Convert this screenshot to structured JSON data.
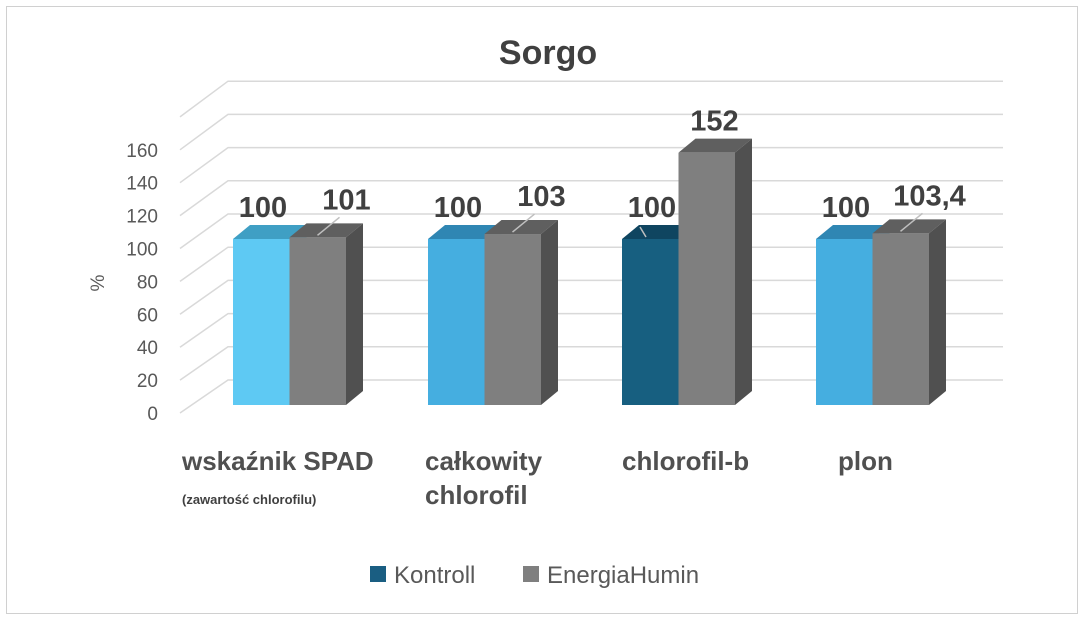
{
  "chart_data": {
    "type": "bar",
    "title": "Sorgo",
    "ylabel": "%",
    "xlabel": "",
    "ylim": [
      0,
      180
    ],
    "yticks": [
      0,
      20,
      40,
      60,
      80,
      100,
      120,
      140,
      160
    ],
    "grid": true,
    "legend_position": "bottom",
    "categories": [
      "wskaźnik SPAD",
      "całkowity chlorofil",
      "chlorofil-b",
      "plon"
    ],
    "category_lines": [
      [
        "wskaźnik SPAD"
      ],
      [
        "całkowity",
        "chlorofil"
      ],
      [
        "chlorofil-b"
      ],
      [
        "plon"
      ]
    ],
    "category_subtitle": "(zawartość chlorofilu)",
    "series": [
      {
        "name": "Kontroll",
        "values": [
          100,
          100,
          100,
          100
        ],
        "labels": [
          "100",
          "100",
          "100",
          "100"
        ],
        "color": "#1a5e82",
        "bar_colors": [
          "#5ec9f3",
          "#45aee0",
          "#175f80",
          "#45aee0"
        ]
      },
      {
        "name": "EnergiaHumin",
        "values": [
          101,
          103,
          152,
          103.4
        ],
        "labels": [
          "101",
          "103",
          "152",
          "103,4"
        ],
        "color": "#7f7f7f"
      }
    ]
  }
}
